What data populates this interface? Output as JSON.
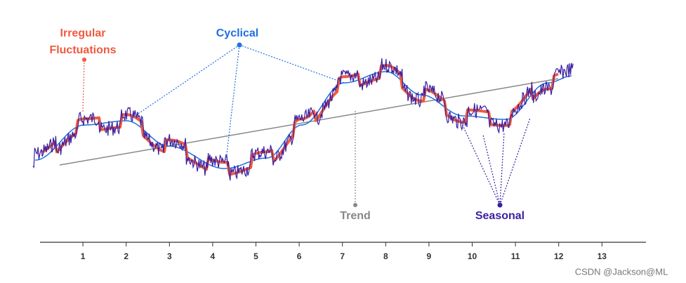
{
  "labels": {
    "irregular": [
      "Irregular",
      "Fluctuations"
    ],
    "cyclical": "Cyclical",
    "trend": "Trend",
    "seasonal": "Seasonal"
  },
  "axis": {
    "ticks": [
      1,
      2,
      3,
      4,
      5,
      6,
      7,
      8,
      9,
      10,
      11,
      12,
      13
    ]
  },
  "watermark": "CSDN @Jackson@ML"
}
